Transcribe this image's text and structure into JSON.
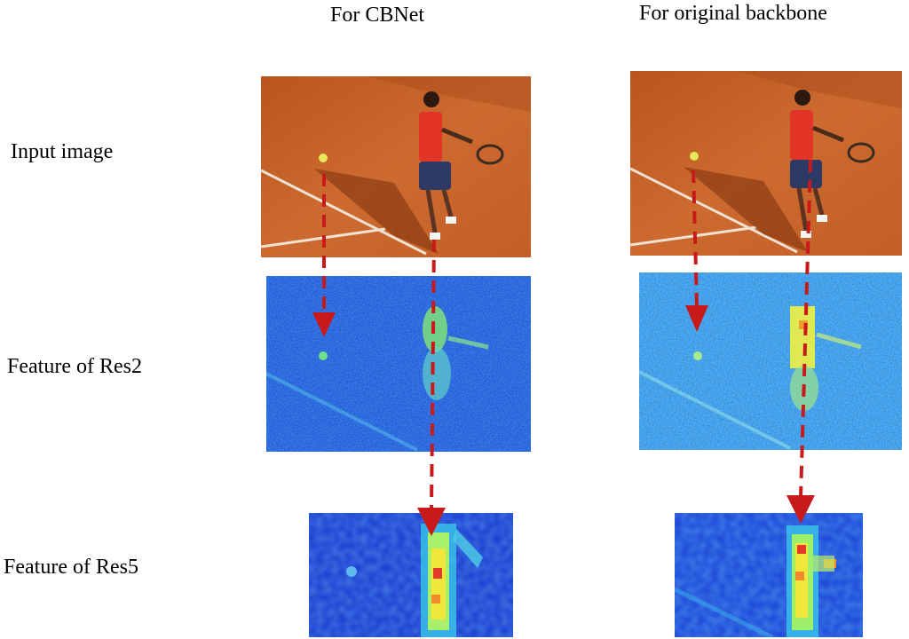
{
  "columns": {
    "cbnet": "For CBNet",
    "original": "For original backbone"
  },
  "rows": {
    "input": "Input image",
    "res2": "Feature of  Res2",
    "res5": "Feature of Res5"
  },
  "colors": {
    "clay_court": "#c9652b",
    "arrow": "#c8191b",
    "heatmap_low": "#1a3fd6",
    "heatmap_mid": "#2fb5e8",
    "heatmap_high": "#f0e23a",
    "heatmap_peak": "#c81e1e"
  }
}
